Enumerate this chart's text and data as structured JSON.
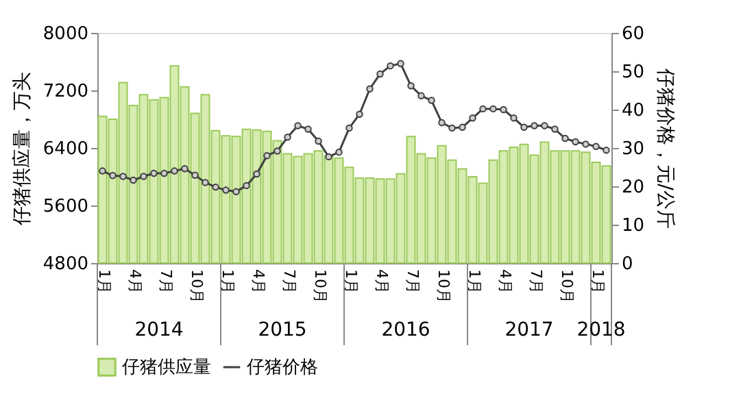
{
  "chart_data": {
    "type": "bar",
    "categories": [
      "1月",
      null,
      null,
      "4月",
      null,
      null,
      "7月",
      null,
      null,
      "10月",
      null,
      null,
      "1月",
      null,
      null,
      "4月",
      null,
      null,
      "7月",
      null,
      null,
      "10月",
      null,
      null,
      "1月",
      null,
      null,
      "4月",
      null,
      null,
      "7月",
      null,
      null,
      "10月",
      null,
      null,
      "1月",
      null,
      null,
      "4月",
      null,
      null,
      "7月",
      null,
      null,
      "10月",
      null,
      null,
      "1月",
      null
    ],
    "series": [
      {
        "name": "仔猪供应量",
        "color": "#d6ecb0",
        "values": [
          6840,
          6800,
          7310,
          6990,
          7140,
          7070,
          7100,
          7540,
          7250,
          6880,
          7140,
          6640,
          6570,
          6560,
          6660,
          6650,
          6630,
          6500,
          6320,
          6280,
          6320,
          6360,
          6290,
          6260,
          6130,
          5980,
          5980,
          5970,
          5970,
          6040,
          6560,
          6320,
          6260,
          6430,
          6230,
          6110,
          6000,
          5910,
          6230,
          6360,
          6410,
          6450,
          6300,
          6480,
          6360,
          6360,
          6360,
          6340,
          6200,
          6150
        ]
      },
      {
        "name": "仔猪价格",
        "type": "line",
        "axis": "y2",
        "color": "#404040",
        "marker": "circle",
        "values": [
          24.0,
          22.8,
          22.6,
          21.6,
          22.6,
          23.4,
          23.4,
          24.0,
          24.6,
          22.9,
          21.0,
          19.8,
          19.0,
          18.6,
          20.2,
          23.2,
          28.0,
          29.2,
          32.8,
          35.8,
          34.9,
          31.8,
          27.7,
          28.9,
          35.2,
          38.8,
          45.4,
          49.3,
          51.4,
          52.0,
          46.2,
          43.6,
          42.4,
          36.6,
          35.2,
          35.4,
          37.8,
          40.2,
          40.2,
          40.0,
          37.8,
          35.4,
          35.8,
          35.8,
          34.9,
          32.5,
          31.6,
          31.0,
          30.4,
          29.4
        ]
      }
    ],
    "ylabel": "仔猪供应量，万头",
    "y2label": "仔猪价格，元/公斤",
    "ylim": [
      4800,
      8000
    ],
    "yticks": [
      4800,
      5600,
      6400,
      7200,
      8000
    ],
    "y2lim": [
      0,
      60
    ],
    "y2ticks": [
      0,
      10,
      20,
      30,
      40,
      50,
      60
    ],
    "annotations": [
      "2014",
      "2015",
      "2016",
      "2017",
      "2018"
    ],
    "grid": false,
    "legend": "bottom"
  }
}
